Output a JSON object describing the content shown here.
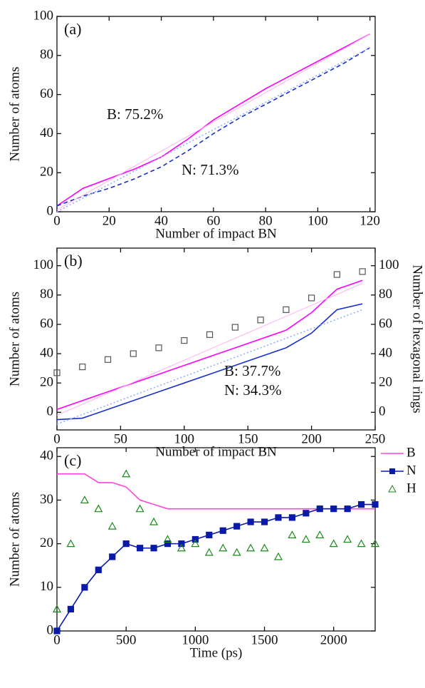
{
  "chart_data": [
    {
      "type": "line",
      "panel_label": "(a)",
      "xlabel": "Number of impact BN",
      "ylabel": "Number of atoms",
      "xlim": [
        0,
        122
      ],
      "ylim": [
        0,
        100
      ],
      "xticks": [
        0,
        20,
        40,
        60,
        80,
        100,
        120
      ],
      "yticks": [
        0,
        20,
        40,
        60,
        80,
        100
      ],
      "series": [
        {
          "color": "#ff00ff",
          "style": "solid",
          "x": [
            0,
            10,
            20,
            30,
            40,
            50,
            60,
            70,
            80,
            90,
            100,
            110,
            120
          ],
          "values": [
            3,
            12,
            17,
            22,
            28,
            37,
            47,
            55,
            63,
            70,
            77,
            84,
            91
          ]
        },
        {
          "color": "#1a2fd0",
          "style": "dashed",
          "x": [
            0,
            10,
            20,
            30,
            40,
            50,
            60,
            70,
            80,
            90,
            100,
            110,
            120
          ],
          "values": [
            3,
            8,
            12,
            17,
            23,
            31,
            40,
            48,
            55,
            62,
            69,
            76,
            84
          ]
        },
        {
          "color": "#ffb0f0",
          "style": "solid",
          "x": [
            0,
            120
          ],
          "values": [
            1,
            91
          ]
        },
        {
          "color": "#8fb0ff",
          "style": "dotted",
          "x": [
            0,
            120
          ],
          "values": [
            0,
            84
          ]
        }
      ],
      "annotations": [
        {
          "text": "B: 75.2%",
          "color": "#ff00ff"
        },
        {
          "text": "N: 71.3%",
          "color": "#1a2fd0"
        }
      ]
    },
    {
      "type": "line",
      "panel_label": "(b)",
      "xlabel": "Number of impact BN",
      "ylabel": "Number of atoms",
      "y2label": "Number of hexagonal rings",
      "xlim": [
        0,
        250
      ],
      "ylim": [
        -12,
        112
      ],
      "y2lim": [
        -12,
        112
      ],
      "xticks": [
        0,
        50,
        100,
        150,
        200,
        250
      ],
      "yticks": [
        0,
        20,
        40,
        60,
        80,
        100
      ],
      "y2ticks": [
        0,
        20,
        40,
        60,
        80,
        100
      ],
      "series": [
        {
          "color": "#ff00ff",
          "style": "solid",
          "x": [
            0,
            20,
            40,
            60,
            80,
            100,
            120,
            140,
            160,
            180,
            200,
            220,
            240
          ],
          "values": [
            2,
            8,
            14,
            20,
            26,
            32,
            38,
            44,
            50,
            56,
            68,
            84,
            90
          ]
        },
        {
          "color": "#1a2fd0",
          "style": "solid",
          "x": [
            0,
            20,
            40,
            60,
            80,
            100,
            120,
            140,
            160,
            180,
            200,
            220,
            240
          ],
          "values": [
            -5,
            -4,
            2,
            8,
            14,
            20,
            26,
            32,
            38,
            44,
            54,
            70,
            74
          ]
        },
        {
          "color": "#ffb0f0",
          "style": "solid",
          "x": [
            0,
            240
          ],
          "values": [
            -2,
            88
          ]
        },
        {
          "color": "#8fb0ff",
          "style": "dotted",
          "x": [
            0,
            240
          ],
          "values": [
            -8,
            70
          ]
        },
        {
          "color": "#555555",
          "style": "none",
          "marker": "square",
          "axis": "y2",
          "x": [
            0,
            20,
            40,
            60,
            80,
            100,
            120,
            140,
            160,
            180,
            200,
            220,
            240
          ],
          "values": [
            27,
            31,
            36,
            40,
            44,
            49,
            53,
            58,
            63,
            70,
            78,
            94,
            96
          ]
        }
      ],
      "annotations": [
        {
          "text": "B: 37.7%",
          "color": "#ff00ff"
        },
        {
          "text": "N: 34.3%",
          "color": "#1a2fd0"
        }
      ]
    },
    {
      "type": "line",
      "panel_label": "(c)",
      "xlabel": "Time (ps)",
      "ylabel": "Number of atoms",
      "xlim": [
        0,
        2300
      ],
      "ylim": [
        0,
        42
      ],
      "xticks": [
        0,
        500,
        1000,
        1500,
        2000
      ],
      "yticks": [
        0,
        10,
        20,
        30,
        40
      ],
      "legend": "upper right",
      "series": [
        {
          "name": "B",
          "color": "#ff44dd",
          "style": "solid",
          "x": [
            0,
            100,
            200,
            300,
            400,
            500,
            600,
            700,
            800,
            900,
            1000,
            1100,
            1200,
            1300,
            1400,
            1500,
            1600,
            1700,
            1800,
            1900,
            2000,
            2100,
            2200,
            2300
          ],
          "values": [
            36,
            36,
            36,
            34,
            34,
            33,
            30,
            29,
            28,
            28,
            28,
            28,
            28,
            28,
            28,
            28,
            28,
            28,
            28,
            28,
            28,
            28,
            28,
            28
          ]
        },
        {
          "name": "N",
          "color": "#0a1aa8",
          "style": "solid",
          "marker": "square",
          "x": [
            0,
            100,
            200,
            300,
            400,
            500,
            600,
            700,
            800,
            900,
            1000,
            1100,
            1200,
            1300,
            1400,
            1500,
            1600,
            1700,
            1800,
            1900,
            2000,
            2100,
            2200,
            2300
          ],
          "values": [
            0,
            5,
            10,
            14,
            17,
            20,
            19,
            19,
            20,
            20,
            21,
            22,
            23,
            24,
            25,
            25,
            26,
            26,
            27,
            28,
            28,
            28,
            29,
            29
          ]
        },
        {
          "name": "H",
          "color": "#1a8a1a",
          "style": "none",
          "marker": "triangle",
          "x": [
            0,
            100,
            200,
            300,
            400,
            500,
            600,
            700,
            800,
            900,
            1000,
            1100,
            1200,
            1300,
            1400,
            1500,
            1600,
            1700,
            1800,
            1900,
            2000,
            2100,
            2200,
            2300
          ],
          "values": [
            5,
            20,
            30,
            28,
            24,
            36,
            28,
            25,
            21,
            19,
            20,
            18,
            19,
            18,
            19,
            19,
            17,
            22,
            21,
            22,
            20,
            21,
            20,
            20
          ]
        }
      ]
    }
  ]
}
